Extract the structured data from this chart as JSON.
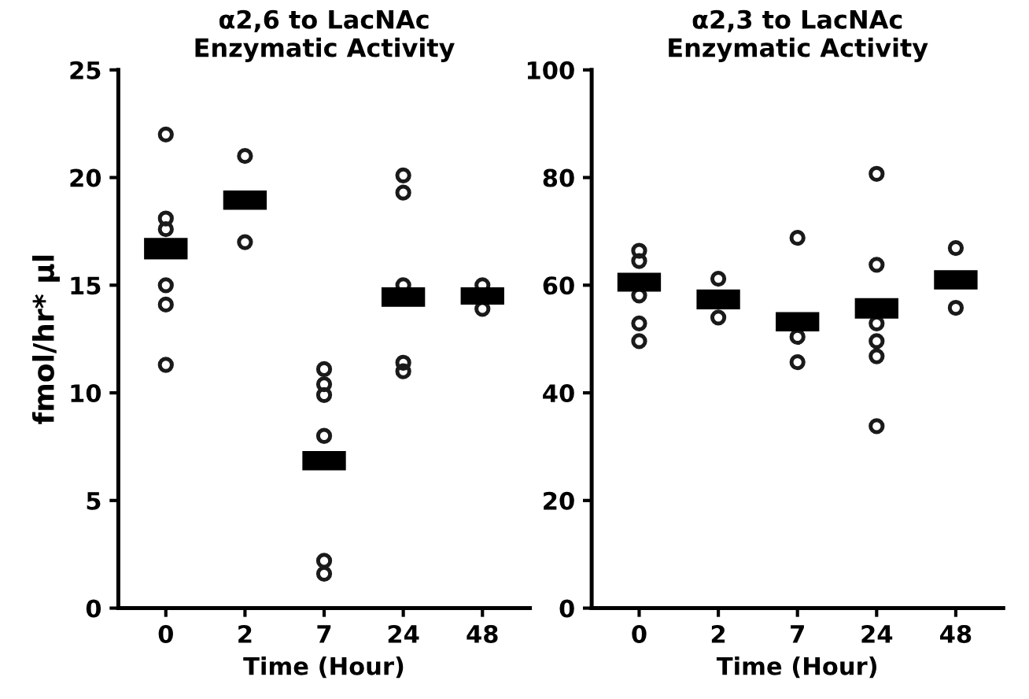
{
  "chart_data": [
    {
      "type": "scatter",
      "title": "α2,6 to LacNAc\nEnzymatic Activity",
      "xlabel": "Time (Hour)",
      "ylabel": "fmol/hr* µl",
      "categories": [
        "0",
        "2",
        "7",
        "24",
        "48"
      ],
      "ylim": [
        0,
        25
      ],
      "yticks": [
        0,
        5,
        10,
        15,
        20,
        25
      ],
      "grid": false,
      "legend": false,
      "series": [
        {
          "type": "bar",
          "color": "#000000",
          "base": [
            16.2,
            18.5,
            6.4,
            14.0,
            14.1
          ],
          "values": [
            1.0,
            0.9,
            0.9,
            0.9,
            0.8
          ]
        },
        {
          "color": "#1a1a1a",
          "marker": "circle",
          "x": [
            "0",
            "0",
            "0",
            "0",
            "0",
            "0",
            "2",
            "2",
            "7",
            "7",
            "7",
            "7",
            "7",
            "7",
            "24",
            "24",
            "24",
            "24",
            "24",
            "48",
            "48"
          ],
          "values": [
            22.0,
            18.1,
            17.6,
            15.0,
            14.1,
            11.3,
            21.0,
            17.0,
            11.1,
            10.4,
            9.9,
            8.0,
            2.2,
            1.6,
            20.1,
            19.3,
            15.0,
            11.4,
            11.0,
            15.0,
            13.9
          ]
        }
      ]
    },
    {
      "type": "scatter",
      "title": "α2,3 to LacNAc\nEnzymatic Activity",
      "xlabel": "Time (Hour)",
      "categories": [
        "0",
        "2",
        "7",
        "24",
        "48"
      ],
      "ylim": [
        0,
        100
      ],
      "yticks": [
        0,
        20,
        40,
        60,
        80,
        100
      ],
      "grid": false,
      "legend": false,
      "series": [
        {
          "type": "bar",
          "color": "#000000",
          "base": [
            58.8,
            55.5,
            51.4,
            53.8,
            59.2
          ],
          "values": [
            3.5,
            3.7,
            3.6,
            3.8,
            3.6
          ]
        },
        {
          "color": "#1a1a1a",
          "marker": "circle",
          "x": [
            "0",
            "0",
            "0",
            "0",
            "0",
            "2",
            "2",
            "7",
            "7",
            "7",
            "24",
            "24",
            "24",
            "24",
            "24",
            "24",
            "48",
            "48"
          ],
          "values": [
            66.4,
            64.5,
            58.1,
            52.9,
            49.6,
            61.2,
            54.0,
            68.8,
            50.4,
            45.7,
            80.7,
            63.8,
            52.9,
            49.6,
            46.8,
            33.8,
            66.9,
            55.8
          ]
        }
      ]
    }
  ]
}
